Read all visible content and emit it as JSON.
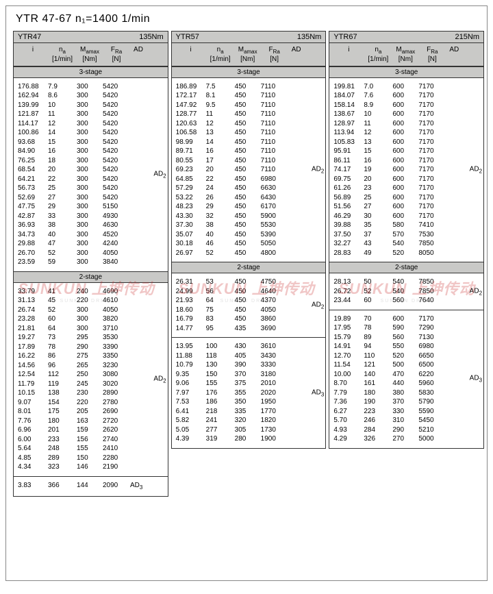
{
  "title": "YTR 47-67   n₁=1400   1/min",
  "colHeads": {
    "i": "i",
    "n": "nₐ\n[1/min]",
    "m": "Mₐmax\n[Nm]",
    "f": "FRₐ\n[N]",
    "ad": "AD"
  },
  "stageLabels": {
    "s3": "3-stage",
    "s2": "2-stage"
  },
  "adLabels": {
    "ad2": "AD₂",
    "ad3": "AD₃"
  },
  "columns": [
    {
      "name": "YTR47",
      "torque": "135Nm",
      "blocks": [
        {
          "stage": "s3",
          "ad": "ad2",
          "rows": [
            [
              "176.88",
              "7.9",
              "300",
              "5420"
            ],
            [
              "162.94",
              "8.6",
              "300",
              "5420"
            ],
            [
              "139.99",
              "10",
              "300",
              "5420"
            ],
            [
              "121.87",
              "11",
              "300",
              "5420"
            ],
            [
              "114.17",
              "12",
              "300",
              "5420"
            ],
            [
              "100.86",
              "14",
              "300",
              "5420"
            ],
            [
              "93.68",
              "15",
              "300",
              "5420"
            ],
            [
              "84.90",
              "16",
              "300",
              "5420"
            ],
            [
              "76.25",
              "18",
              "300",
              "5420"
            ],
            [
              "68.54",
              "20",
              "300",
              "5420"
            ],
            [
              "64.21",
              "22",
              "300",
              "5420"
            ],
            [
              "56.73",
              "25",
              "300",
              "5420"
            ],
            [
              "52.69",
              "27",
              "300",
              "5420"
            ],
            [
              "47.75",
              "29",
              "300",
              "5150"
            ],
            [
              "42.87",
              "33",
              "300",
              "4930"
            ],
            [
              "36.93",
              "38",
              "300",
              "4630"
            ],
            [
              "34.73",
              "40",
              "300",
              "4520"
            ],
            [
              "29.88",
              "47",
              "300",
              "4240"
            ],
            [
              "26.70",
              "52",
              "300",
              "4050"
            ],
            [
              "23.59",
              "59",
              "300",
              "3840"
            ]
          ]
        },
        {
          "stage": "s2",
          "ad": "ad2",
          "rows": [
            [
              "33.79",
              "41",
              "240",
              "4690"
            ],
            [
              "31.13",
              "45",
              "220",
              "4610"
            ],
            [
              "26.74",
              "52",
              "300",
              "4050"
            ],
            [
              "23.28",
              "60",
              "300",
              "3820"
            ],
            [
              "21.81",
              "64",
              "300",
              "3710"
            ],
            [
              "19.27",
              "73",
              "295",
              "3530"
            ],
            [
              "17.89",
              "78",
              "290",
              "3390"
            ],
            [
              "16.22",
              "86",
              "275",
              "3350"
            ],
            [
              "14.56",
              "96",
              "265",
              "3230"
            ],
            [
              "12.54",
              "112",
              "250",
              "3080"
            ],
            [
              "11.79",
              "119",
              "245",
              "3020"
            ],
            [
              "10.15",
              "138",
              "230",
              "2890"
            ],
            [
              "9.07",
              "154",
              "220",
              "2780"
            ],
            [
              "8.01",
              "175",
              "205",
              "2690"
            ],
            [
              "7.76",
              "180",
              "163",
              "2720"
            ],
            [
              "6.96",
              "201",
              "159",
              "2620"
            ],
            [
              "6.00",
              "233",
              "156",
              "2740"
            ],
            [
              "5.64",
              "248",
              "155",
              "2410"
            ],
            [
              "4.85",
              "289",
              "150",
              "2280"
            ],
            [
              "4.34",
              "323",
              "146",
              "2190"
            ]
          ]
        },
        {
          "sep": true,
          "ad": "ad3",
          "inline": true,
          "rows": [
            [
              "3.83",
              "366",
              "144",
              "2090"
            ]
          ]
        }
      ]
    },
    {
      "name": "YTR57",
      "torque": "135Nm",
      "blocks": [
        {
          "stage": "s3",
          "ad": "ad2",
          "rows": [
            [
              "186.89",
              "7.5",
              "450",
              "7110"
            ],
            [
              "172.17",
              "8.1",
              "450",
              "7110"
            ],
            [
              "147.92",
              "9.5",
              "450",
              "7110"
            ],
            [
              "128.77",
              "11",
              "450",
              "7110"
            ],
            [
              "120.63",
              "12",
              "450",
              "7110"
            ],
            [
              "106.58",
              "13",
              "450",
              "7110"
            ],
            [
              "98.99",
              "14",
              "450",
              "7110"
            ],
            [
              "89.71",
              "16",
              "450",
              "7110"
            ],
            [
              "80.55",
              "17",
              "450",
              "7110"
            ],
            [
              "69.23",
              "20",
              "450",
              "7110"
            ],
            [
              "64.85",
              "22",
              "450",
              "6980"
            ],
            [
              "57.29",
              "24",
              "450",
              "6630"
            ],
            [
              "53.22",
              "26",
              "450",
              "6430"
            ],
            [
              "48.23",
              "29",
              "450",
              "6170"
            ],
            [
              "43.30",
              "32",
              "450",
              "5900"
            ],
            [
              "37.30",
              "38",
              "450",
              "5530"
            ],
            [
              "35.07",
              "40",
              "450",
              "5390"
            ],
            [
              "30.18",
              "46",
              "450",
              "5050"
            ],
            [
              "26.97",
              "52",
              "450",
              "4800"
            ]
          ]
        },
        {
          "stage": "s2",
          "ad": "ad2",
          "rows": [
            [
              "26.31",
              "53",
              "450",
              "4750"
            ],
            [
              "24.99",
              "56",
              "450",
              "4640"
            ],
            [
              "21.93",
              "64",
              "450",
              "4370"
            ],
            [
              "18.60",
              "75",
              "450",
              "4050"
            ],
            [
              "16.79",
              "83",
              "450",
              "3860"
            ],
            [
              "14.77",
              "95",
              "435",
              "3690"
            ]
          ]
        },
        {
          "sep": true,
          "ad": "ad3",
          "rows": [
            [
              "13.95",
              "100",
              "430",
              "3610"
            ],
            [
              "11.88",
              "118",
              "405",
              "3430"
            ],
            [
              "10.79",
              "130",
              "390",
              "3330"
            ],
            [
              "9.35",
              "150",
              "370",
              "3180"
            ],
            [
              "9.06",
              "155",
              "375",
              "2010"
            ],
            [
              "7.97",
              "176",
              "355",
              "2020"
            ],
            [
              "7.53",
              "186",
              "350",
              "1950"
            ],
            [
              "6.41",
              "218",
              "335",
              "1770"
            ],
            [
              "5.82",
              "241",
              "320",
              "1820"
            ],
            [
              "5.05",
              "277",
              "305",
              "1730"
            ],
            [
              "4.39",
              "319",
              "280",
              "1900"
            ]
          ]
        }
      ]
    },
    {
      "name": "YTR67",
      "torque": "215Nm",
      "blocks": [
        {
          "stage": "s3",
          "ad": "ad2",
          "rows": [
            [
              "199.81",
              "7.0",
              "600",
              "7170"
            ],
            [
              "184.07",
              "7.6",
              "600",
              "7170"
            ],
            [
              "158.14",
              "8.9",
              "600",
              "7170"
            ],
            [
              "138.67",
              "10",
              "600",
              "7170"
            ],
            [
              "128.97",
              "11",
              "600",
              "7170"
            ],
            [
              "113.94",
              "12",
              "600",
              "7170"
            ],
            [
              "105.83",
              "13",
              "600",
              "7170"
            ],
            [
              "95.91",
              "15",
              "600",
              "7170"
            ],
            [
              "86.11",
              "16",
              "600",
              "7170"
            ],
            [
              "74.17",
              "19",
              "600",
              "7170"
            ],
            [
              "69.75",
              "20",
              "600",
              "7170"
            ],
            [
              "61.26",
              "23",
              "600",
              "7170"
            ],
            [
              "56.89",
              "25",
              "600",
              "7170"
            ],
            [
              "51.56",
              "27",
              "600",
              "7170"
            ],
            [
              "46.29",
              "30",
              "600",
              "7170"
            ],
            [
              "39.88",
              "35",
              "580",
              "7410"
            ],
            [
              "37.50",
              "37",
              "570",
              "7530"
            ],
            [
              "32.27",
              "43",
              "540",
              "7850"
            ],
            [
              "28.83",
              "49",
              "520",
              "8050"
            ]
          ]
        },
        {
          "stage": "s2",
          "ad": "ad2",
          "rows": [
            [
              "28.13",
              "50",
              "540",
              "7850"
            ],
            [
              "26.72",
              "52",
              "540",
              "7850"
            ],
            [
              "23.44",
              "60",
              "560",
              "7640"
            ]
          ]
        },
        {
          "sep": true,
          "ad": "ad3",
          "rows": [
            [
              "19.89",
              "70",
              "600",
              "7170"
            ],
            [
              "17.95",
              "78",
              "590",
              "7290"
            ],
            [
              "15.79",
              "89",
              "560",
              "7130"
            ],
            [
              "14.91",
              "94",
              "550",
              "6980"
            ],
            [
              "12.70",
              "110",
              "520",
              "6650"
            ],
            [
              "11.54",
              "121",
              "500",
              "6500"
            ],
            [
              "10.00",
              "140",
              "470",
              "6220"
            ],
            [
              "8.70",
              "161",
              "440",
              "5960"
            ],
            [
              "7.79",
              "180",
              "380",
              "5830"
            ],
            [
              "7.36",
              "190",
              "370",
              "5790"
            ],
            [
              "6.27",
              "223",
              "330",
              "5590"
            ],
            [
              "5.70",
              "246",
              "310",
              "5450"
            ],
            [
              "4.93",
              "284",
              "290",
              "5210"
            ],
            [
              "4.29",
              "326",
              "270",
              "5000"
            ]
          ]
        }
      ]
    }
  ],
  "watermark": {
    "brand": "SUNKUN 上坤传动",
    "sub": "SUNKUN DRIVE"
  }
}
